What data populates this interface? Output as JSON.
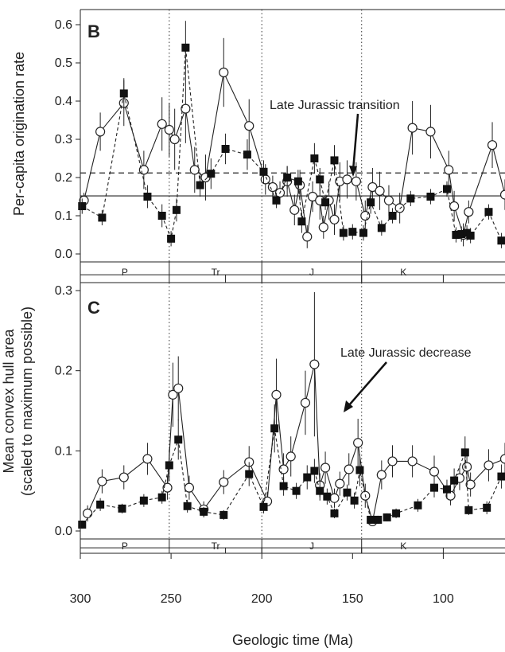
{
  "chart_data": [
    {
      "panel": "B",
      "type": "line",
      "ylabel": "Per-capita origination rate",
      "xlim": [
        300,
        66
      ],
      "ylim": [
        0,
        0.62
      ],
      "yticks": [
        "0.0",
        "0.1",
        "0.2",
        "0.3",
        "0.4",
        "0.5",
        "0.6"
      ],
      "yticks_values": [
        0,
        0.1,
        0.2,
        0.3,
        0.4,
        0.5,
        0.6
      ],
      "grid": false,
      "hlines": [
        {
          "y": 0.152,
          "style": "solid"
        },
        {
          "y": 0.212,
          "style": "dashed"
        }
      ],
      "boundaries": [
        251,
        200,
        145
      ],
      "periods": [
        "P",
        "Tr",
        "J",
        "K"
      ],
      "annotation": {
        "text": "Late Jurassic transition",
        "x": 150,
        "y": 0.205
      },
      "series": [
        {
          "marker": "open-circle",
          "linestyle": "solid",
          "x": [
            298,
            289,
            276,
            265,
            255,
            251,
            248,
            242,
            237,
            231,
            221,
            207,
            198,
            194,
            190,
            186,
            182,
            179,
            175,
            172,
            168,
            166,
            163,
            160,
            157,
            153,
            148,
            143,
            139,
            135,
            130,
            124,
            117,
            107,
            97,
            94,
            89,
            86,
            73,
            66
          ],
          "y": [
            0.14,
            0.32,
            0.395,
            0.22,
            0.34,
            0.325,
            0.3,
            0.38,
            0.22,
            0.2,
            0.475,
            0.335,
            0.195,
            0.175,
            0.16,
            0.19,
            0.115,
            0.18,
            0.045,
            0.15,
            0.14,
            0.07,
            0.14,
            0.09,
            0.19,
            0.195,
            0.19,
            0.1,
            0.175,
            0.165,
            0.14,
            0.12,
            0.33,
            0.32,
            0.22,
            0.125,
            0.05,
            0.11,
            0.285,
            0.155
          ],
          "err": [
            0.02,
            0.05,
            0.06,
            0.05,
            0.07,
            0.07,
            0.08,
            0.09,
            0.06,
            0.06,
            0.09,
            0.07,
            0.04,
            0.03,
            0.03,
            0.04,
            0.04,
            0.04,
            0.03,
            0.04,
            0.05,
            0.03,
            0.05,
            0.04,
            0.05,
            0.05,
            0.05,
            0.04,
            0.05,
            0.05,
            0.04,
            0.04,
            0.07,
            0.07,
            0.05,
            0.04,
            0.03,
            0.03,
            0.06,
            0.04
          ]
        },
        {
          "marker": "filled-square",
          "linestyle": "dashed",
          "x": [
            299,
            288,
            276,
            263,
            255,
            250,
            247,
            242,
            234,
            228,
            220,
            208,
            199,
            192,
            186,
            180,
            178,
            171,
            168,
            165,
            160,
            155,
            150,
            144,
            140,
            134,
            128,
            118,
            107,
            98,
            93,
            90,
            87,
            85,
            75,
            68
          ],
          "y": [
            0.125,
            0.095,
            0.42,
            0.15,
            0.1,
            0.04,
            0.115,
            0.54,
            0.18,
            0.21,
            0.275,
            0.26,
            0.215,
            0.14,
            0.2,
            0.19,
            0.085,
            0.25,
            0.195,
            0.135,
            0.245,
            0.055,
            0.058,
            0.055,
            0.135,
            0.068,
            0.1,
            0.145,
            0.15,
            0.17,
            0.05,
            0.052,
            0.055,
            0.048,
            0.11,
            0.035
          ],
          "err": [
            0.02,
            0.02,
            0.04,
            0.03,
            0.03,
            0.02,
            0.03,
            0.07,
            0.03,
            0.04,
            0.04,
            0.04,
            0.03,
            0.02,
            0.03,
            0.03,
            0.03,
            0.04,
            0.03,
            0.02,
            0.04,
            0.02,
            0.02,
            0.02,
            0.03,
            0.02,
            0.02,
            0.02,
            0.02,
            0.02,
            0.02,
            0.02,
            0.02,
            0.02,
            0.02,
            0.02
          ]
        }
      ]
    },
    {
      "panel": "C",
      "type": "line",
      "ylabel": "Mean convex hull area",
      "ylabel2": "(scaled to maximum possible)",
      "xlabel": "Geologic time (Ma)",
      "xlim": [
        300,
        66
      ],
      "xticks": [
        "300",
        "250",
        "200",
        "150",
        "100"
      ],
      "xticks_values": [
        300,
        250,
        200,
        150,
        100
      ],
      "ylim": [
        0,
        0.3
      ],
      "yticks": [
        "0.0",
        "0.1",
        "0.2",
        "0.3"
      ],
      "yticks_values": [
        0,
        0.1,
        0.2,
        0.3
      ],
      "grid": false,
      "boundaries": [
        251,
        200,
        145
      ],
      "periods": [
        "P",
        "Tr",
        "J",
        "K"
      ],
      "annotation": {
        "text": "Late Jurassic decrease",
        "x": 156,
        "y": 0.05
      },
      "series": [
        {
          "marker": "open-circle",
          "linestyle": "solid",
          "x": [
            296,
            288,
            276,
            263,
            252,
            249,
            246,
            240,
            232,
            221,
            207,
            197,
            192,
            188,
            184,
            176,
            171,
            168,
            165,
            160,
            157,
            152,
            147,
            143,
            139,
            134,
            128,
            117,
            105,
            96,
            91,
            87,
            85,
            75,
            66
          ],
          "y": [
            0.022,
            0.062,
            0.067,
            0.09,
            0.054,
            0.17,
            0.178,
            0.054,
            0.027,
            0.061,
            0.086,
            0.037,
            0.17,
            0.077,
            0.093,
            0.16,
            0.208,
            0.057,
            0.079,
            0.041,
            0.059,
            0.077,
            0.11,
            0.044,
            0.012,
            0.07,
            0.087,
            0.087,
            0.074,
            0.044,
            0.066,
            0.08,
            0.058,
            0.082,
            0.09
          ],
          "err": [
            0.01,
            0.015,
            0.015,
            0.02,
            0.015,
            0.04,
            0.04,
            0.015,
            0.01,
            0.015,
            0.02,
            0.012,
            0.045,
            0.02,
            0.025,
            0.04,
            0.09,
            0.015,
            0.02,
            0.012,
            0.015,
            0.02,
            0.03,
            0.015,
            0.006,
            0.018,
            0.02,
            0.02,
            0.02,
            0.012,
            0.015,
            0.02,
            0.015,
            0.02,
            0.02
          ]
        },
        {
          "marker": "filled-square",
          "linestyle": "dashed",
          "x": [
            299,
            289,
            277,
            265,
            255,
            251,
            246,
            241,
            232,
            221,
            207,
            199,
            193,
            188,
            181,
            175,
            171,
            168,
            164,
            160,
            153,
            149,
            146,
            140,
            136,
            131,
            126,
            114,
            105,
            98,
            94,
            88,
            86,
            76,
            68
          ],
          "y": [
            0.008,
            0.033,
            0.028,
            0.038,
            0.042,
            0.082,
            0.114,
            0.031,
            0.024,
            0.02,
            0.071,
            0.03,
            0.128,
            0.056,
            0.05,
            0.067,
            0.075,
            0.05,
            0.043,
            0.022,
            0.048,
            0.038,
            0.076,
            0.014,
            0.014,
            0.017,
            0.022,
            0.032,
            0.054,
            0.052,
            0.063,
            0.098,
            0.026,
            0.029,
            0.068
          ],
          "err": [
            0.005,
            0.008,
            0.006,
            0.008,
            0.008,
            0.02,
            0.025,
            0.008,
            0.006,
            0.006,
            0.015,
            0.008,
            0.03,
            0.012,
            0.01,
            0.015,
            0.015,
            0.012,
            0.01,
            0.006,
            0.01,
            0.01,
            0.02,
            0.005,
            0.005,
            0.005,
            0.006,
            0.008,
            0.012,
            0.012,
            0.015,
            0.02,
            0.006,
            0.008,
            0.015
          ]
        }
      ]
    }
  ]
}
